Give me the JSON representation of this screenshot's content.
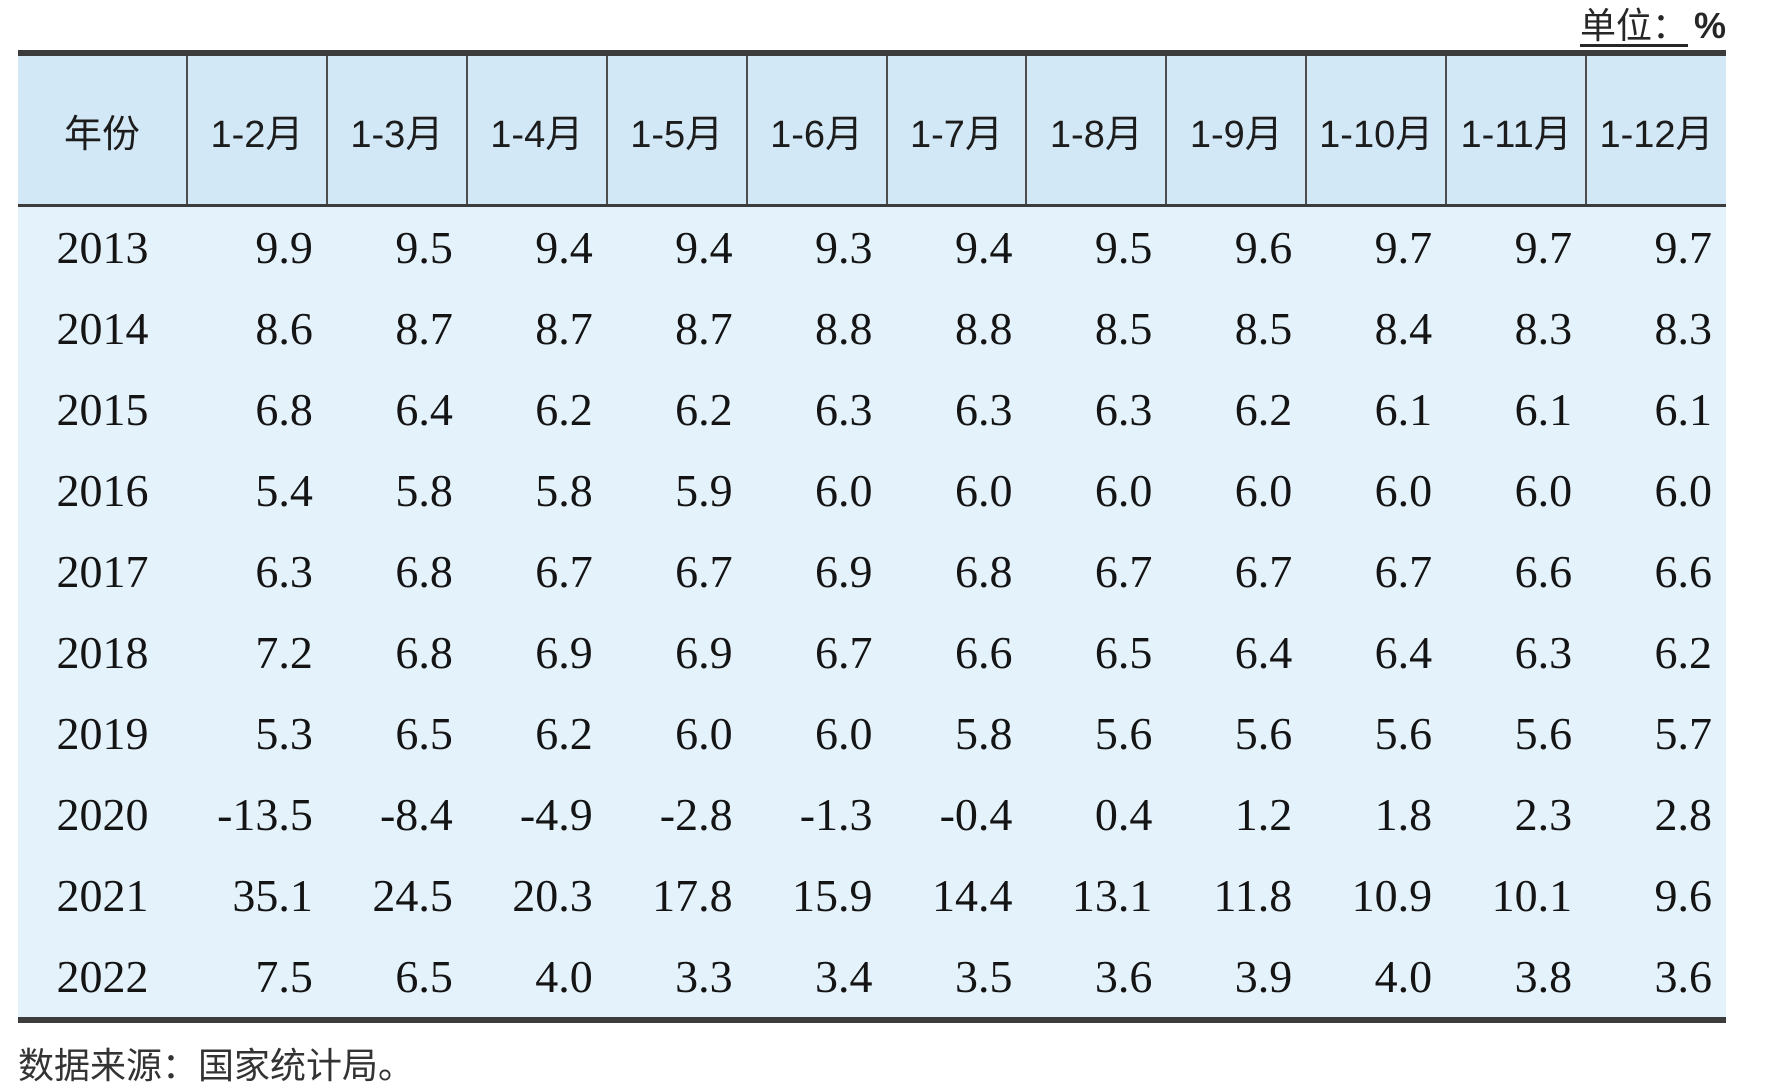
{
  "page": {
    "unit_note": {
      "label": "单位：",
      "value": "%"
    },
    "source_note": "数据来源：国家统计局。"
  },
  "colors": {
    "header_bg": "#d2e8f6",
    "body_bg": "#e4f2fb",
    "border": "#3c3c3c",
    "divider": "#4d4d4d"
  },
  "table": {
    "columns": [
      "年份",
      "1-2月",
      "1-3月",
      "1-4月",
      "1-5月",
      "1-6月",
      "1-7月",
      "1-8月",
      "1-9月",
      "1-10月",
      "1-11月",
      "1-12月"
    ],
    "rows": [
      {
        "year": "2013",
        "values": [
          "9.9",
          "9.5",
          "9.4",
          "9.4",
          "9.3",
          "9.4",
          "9.5",
          "9.6",
          "9.7",
          "9.7",
          "9.7"
        ]
      },
      {
        "year": "2014",
        "values": [
          "8.6",
          "8.7",
          "8.7",
          "8.7",
          "8.8",
          "8.8",
          "8.5",
          "8.5",
          "8.4",
          "8.3",
          "8.3"
        ]
      },
      {
        "year": "2015",
        "values": [
          "6.8",
          "6.4",
          "6.2",
          "6.2",
          "6.3",
          "6.3",
          "6.3",
          "6.2",
          "6.1",
          "6.1",
          "6.1"
        ]
      },
      {
        "year": "2016",
        "values": [
          "5.4",
          "5.8",
          "5.8",
          "5.9",
          "6.0",
          "6.0",
          "6.0",
          "6.0",
          "6.0",
          "6.0",
          "6.0"
        ]
      },
      {
        "year": "2017",
        "values": [
          "6.3",
          "6.8",
          "6.7",
          "6.7",
          "6.9",
          "6.8",
          "6.7",
          "6.7",
          "6.7",
          "6.6",
          "6.6"
        ]
      },
      {
        "year": "2018",
        "values": [
          "7.2",
          "6.8",
          "6.9",
          "6.9",
          "6.7",
          "6.6",
          "6.5",
          "6.4",
          "6.4",
          "6.3",
          "6.2"
        ]
      },
      {
        "year": "2019",
        "values": [
          "5.3",
          "6.5",
          "6.2",
          "6.0",
          "6.0",
          "5.8",
          "5.6",
          "5.6",
          "5.6",
          "5.6",
          "5.7"
        ]
      },
      {
        "year": "2020",
        "values": [
          "-13.5",
          "-8.4",
          "-4.9",
          "-2.8",
          "-1.3",
          "-0.4",
          "0.4",
          "1.2",
          "1.8",
          "2.3",
          "2.8"
        ]
      },
      {
        "year": "2021",
        "values": [
          "35.1",
          "24.5",
          "20.3",
          "17.8",
          "15.9",
          "14.4",
          "13.1",
          "11.8",
          "10.9",
          "10.1",
          "9.6"
        ]
      },
      {
        "year": "2022",
        "values": [
          "7.5",
          "6.5",
          "4.0",
          "3.3",
          "3.4",
          "3.5",
          "3.6",
          "3.9",
          "4.0",
          "3.8",
          "3.6"
        ]
      }
    ]
  },
  "chart_data": {
    "type": "table",
    "title": "",
    "unit": "%",
    "columns": [
      "年份",
      "1-2月",
      "1-3月",
      "1-4月",
      "1-5月",
      "1-6月",
      "1-7月",
      "1-8月",
      "1-9月",
      "1-10月",
      "1-11月",
      "1-12月"
    ],
    "rows": [
      [
        "2013",
        9.9,
        9.5,
        9.4,
        9.4,
        9.3,
        9.4,
        9.5,
        9.6,
        9.7,
        9.7,
        9.7
      ],
      [
        "2014",
        8.6,
        8.7,
        8.7,
        8.7,
        8.8,
        8.8,
        8.5,
        8.5,
        8.4,
        8.3,
        8.3
      ],
      [
        "2015",
        6.8,
        6.4,
        6.2,
        6.2,
        6.3,
        6.3,
        6.3,
        6.2,
        6.1,
        6.1,
        6.1
      ],
      [
        "2016",
        5.4,
        5.8,
        5.8,
        5.9,
        6.0,
        6.0,
        6.0,
        6.0,
        6.0,
        6.0,
        6.0
      ],
      [
        "2017",
        6.3,
        6.8,
        6.7,
        6.7,
        6.9,
        6.8,
        6.7,
        6.7,
        6.7,
        6.6,
        6.6
      ],
      [
        "2018",
        7.2,
        6.8,
        6.9,
        6.9,
        6.7,
        6.6,
        6.5,
        6.4,
        6.4,
        6.3,
        6.2
      ],
      [
        "2019",
        5.3,
        6.5,
        6.2,
        6.0,
        6.0,
        5.8,
        5.6,
        5.6,
        5.6,
        5.6,
        5.7
      ],
      [
        "2020",
        -13.5,
        -8.4,
        -4.9,
        -2.8,
        -1.3,
        -0.4,
        0.4,
        1.2,
        1.8,
        2.3,
        2.8
      ],
      [
        "2021",
        35.1,
        24.5,
        20.3,
        17.8,
        15.9,
        14.4,
        13.1,
        11.8,
        10.9,
        10.1,
        9.6
      ],
      [
        "2022",
        7.5,
        6.5,
        4.0,
        3.3,
        3.4,
        3.5,
        3.6,
        3.9,
        4.0,
        3.8,
        3.6
      ]
    ],
    "source_note": "数据来源：国家统计局。"
  }
}
